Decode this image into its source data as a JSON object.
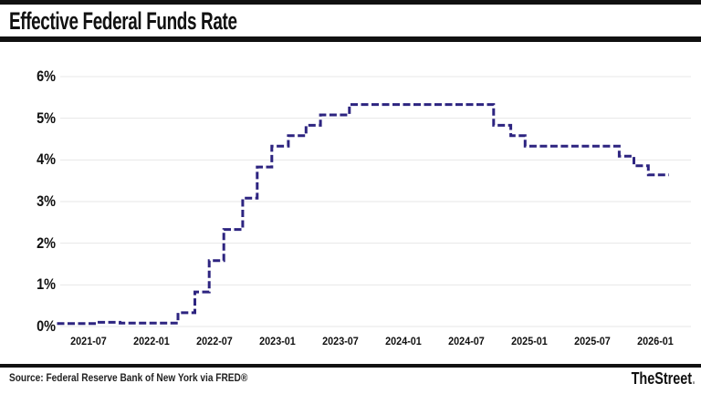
{
  "header": {
    "title": "Effective Federal Funds Rate"
  },
  "chart_data": {
    "type": "line",
    "variant": "step-after",
    "title": "Effective Federal Funds Rate",
    "xlabel": "",
    "ylabel": "",
    "unit": "percent",
    "ylim": [
      0,
      6
    ],
    "y_tick_labels": [
      "0%",
      "1%",
      "2%",
      "3%",
      "4%",
      "5%",
      "6%"
    ],
    "x_tick_labels": [
      "2021-07",
      "2022-01",
      "2022-07",
      "2023-01",
      "2023-07",
      "2024-01",
      "2024-07",
      "2025-01",
      "2025-07",
      "2026-01"
    ],
    "grid": "horizontal-only",
    "legend": "none",
    "line_color": "#2d2480",
    "line_style": "dashed",
    "gridline_color": "#e7e7e7",
    "series": [
      {
        "name": "Effective Federal Funds Rate (%)",
        "step_points": [
          [
            "2021-04-01",
            0.07
          ],
          [
            "2021-08-01",
            0.1
          ],
          [
            "2021-10-01",
            0.08
          ],
          [
            "2022-03-17",
            0.33
          ],
          [
            "2022-05-05",
            0.83
          ],
          [
            "2022-06-16",
            1.58
          ],
          [
            "2022-07-28",
            2.33
          ],
          [
            "2022-09-22",
            3.08
          ],
          [
            "2022-11-03",
            3.83
          ],
          [
            "2022-12-15",
            4.33
          ],
          [
            "2023-02-02",
            4.58
          ],
          [
            "2023-03-23",
            4.83
          ],
          [
            "2023-05-04",
            5.08
          ],
          [
            "2023-07-27",
            5.33
          ],
          [
            "2024-09-19",
            4.83
          ],
          [
            "2024-11-08",
            4.58
          ],
          [
            "2024-12-19",
            4.33
          ],
          [
            "2025-09-18",
            4.09
          ],
          [
            "2025-10-30",
            3.86
          ],
          [
            "2025-12-11",
            3.64
          ]
        ],
        "end_date": "2026-02-10",
        "end_value": 3.64
      }
    ]
  },
  "footer": {
    "source": "Source: Federal Reserve Bank of New York via FRED®",
    "brand": "TheStreet",
    "brand_suffix": "."
  }
}
